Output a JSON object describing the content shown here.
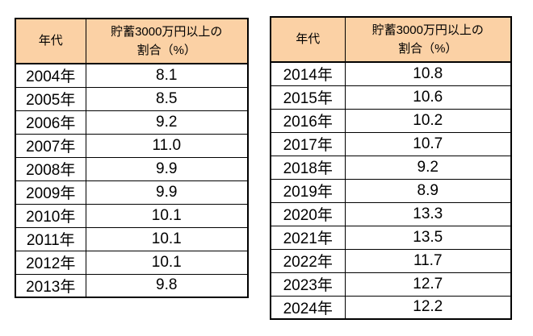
{
  "page": {
    "background": "#ffffff"
  },
  "colors": {
    "header_bg": "#fbd1a5",
    "border": "#000000",
    "text": "#000000"
  },
  "tables": [
    {
      "name": "savings-rate-2004-2013",
      "header": {
        "year": "年代",
        "value_line1": "貯蓄3000万円以上の",
        "value_line2": "割合（%）"
      },
      "rows": [
        {
          "year": "2004年",
          "value": "8.1"
        },
        {
          "year": "2005年",
          "value": "8.5"
        },
        {
          "year": "2006年",
          "value": "9.2"
        },
        {
          "year": "2007年",
          "value": "11.0"
        },
        {
          "year": "2008年",
          "value": "9.9"
        },
        {
          "year": "2009年",
          "value": "9.9"
        },
        {
          "year": "2010年",
          "value": "10.1"
        },
        {
          "year": "2011年",
          "value": "10.1"
        },
        {
          "year": "2012年",
          "value": "10.1"
        },
        {
          "year": "2013年",
          "value": "9.8"
        }
      ]
    },
    {
      "name": "savings-rate-2014-2024",
      "header": {
        "year": "年代",
        "value_line1": "貯蓄3000万円以上の",
        "value_line2": "割合（%）"
      },
      "rows": [
        {
          "year": "2014年",
          "value": "10.8"
        },
        {
          "year": "2015年",
          "value": "10.6"
        },
        {
          "year": "2016年",
          "value": "10.2"
        },
        {
          "year": "2017年",
          "value": "10.7"
        },
        {
          "year": "2018年",
          "value": "9.2"
        },
        {
          "year": "2019年",
          "value": "8.9"
        },
        {
          "year": "2020年",
          "value": "13.3"
        },
        {
          "year": "2021年",
          "value": "13.5"
        },
        {
          "year": "2022年",
          "value": "11.7"
        },
        {
          "year": "2023年",
          "value": "12.7"
        },
        {
          "year": "2024年",
          "value": "12.2"
        }
      ]
    }
  ],
  "chart_data": [
    {
      "type": "table",
      "title": "貯蓄3000万円以上の割合（%） 2004-2013",
      "columns": [
        "年代",
        "貯蓄3000万円以上の割合（%）"
      ],
      "categories": [
        "2004年",
        "2005年",
        "2006年",
        "2007年",
        "2008年",
        "2009年",
        "2010年",
        "2011年",
        "2012年",
        "2013年"
      ],
      "values": [
        8.1,
        8.5,
        9.2,
        11.0,
        9.9,
        9.9,
        10.1,
        10.1,
        10.1,
        9.8
      ]
    },
    {
      "type": "table",
      "title": "貯蓄3000万円以上の割合（%） 2014-2024",
      "columns": [
        "年代",
        "貯蓄3000万円以上の割合（%）"
      ],
      "categories": [
        "2014年",
        "2015年",
        "2016年",
        "2017年",
        "2018年",
        "2019年",
        "2020年",
        "2021年",
        "2022年",
        "2023年",
        "2024年"
      ],
      "values": [
        10.8,
        10.6,
        10.2,
        10.7,
        9.2,
        8.9,
        13.3,
        13.5,
        11.7,
        12.7,
        12.2
      ]
    }
  ]
}
